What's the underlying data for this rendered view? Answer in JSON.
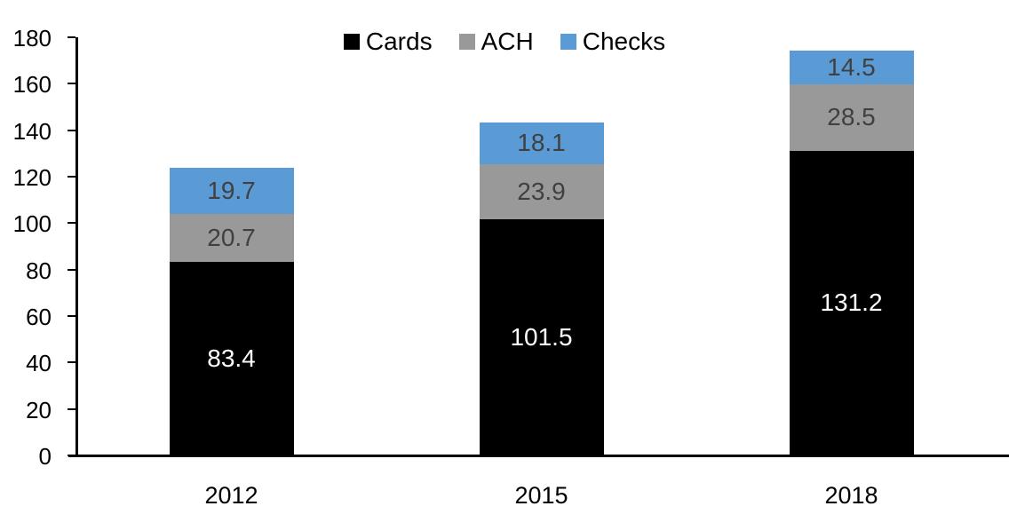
{
  "chart_data": {
    "type": "bar",
    "stacked": true,
    "title": "",
    "xlabel": "",
    "ylabel": "",
    "categories": [
      "2012",
      "2015",
      "2018"
    ],
    "series": [
      {
        "name": "Cards",
        "color": "#000000",
        "label_color": "#ffffff",
        "values": [
          83.4,
          101.5,
          131.2
        ]
      },
      {
        "name": "ACH",
        "color": "#999999",
        "label_color": "#404040",
        "values": [
          20.7,
          23.9,
          28.5
        ]
      },
      {
        "name": "Checks",
        "color": "#5b9bd5",
        "label_color": "#404040",
        "values": [
          19.7,
          18.1,
          14.5
        ]
      }
    ],
    "ylim": [
      0,
      180
    ],
    "yticks": [
      0,
      20,
      40,
      60,
      80,
      100,
      120,
      140,
      160,
      180
    ],
    "grid": false,
    "legend_position": "top",
    "axis_color": "#000000"
  }
}
